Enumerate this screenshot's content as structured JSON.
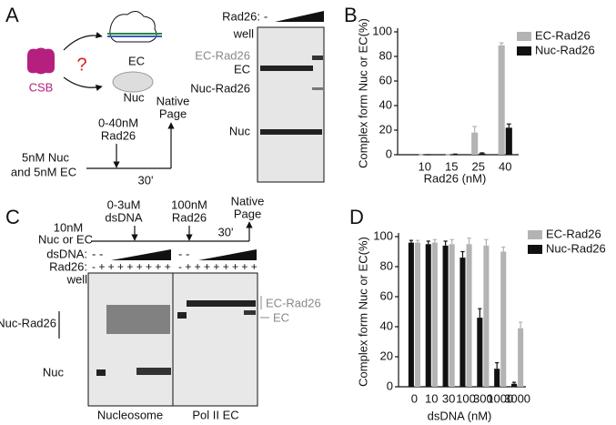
{
  "chart_data": [
    {
      "type": "bar",
      "categories": [
        "10",
        "15",
        "25",
        "40"
      ],
      "series": [
        {
          "name": "EC-Rad26",
          "color": "#b3b3b3",
          "values": [
            0,
            0,
            18,
            89
          ],
          "errors": [
            0,
            0,
            5,
            2
          ]
        },
        {
          "name": "Nuc-Rad26",
          "color": "#111111",
          "values": [
            0,
            0,
            1,
            22
          ],
          "errors": [
            0,
            0.5,
            0.5,
            3
          ]
        }
      ],
      "ylim": [
        0,
        100
      ],
      "yticks": [
        0,
        20,
        40,
        60,
        80,
        100
      ],
      "ylabel": "Complex form Nuc or EC(%)",
      "xlabel": "Rad26 (nM)",
      "legend": "upper right"
    },
    {
      "type": "bar",
      "categories": [
        "0",
        "10",
        "30",
        "100",
        "300",
        "1000",
        "3000"
      ],
      "series": [
        {
          "name": "Nuc-Rad26",
          "color": "#111111",
          "values": [
            96,
            95,
            94,
            86,
            46,
            12,
            2
          ],
          "errors": [
            1.5,
            2,
            3,
            4,
            6,
            4,
            1
          ]
        },
        {
          "name": "EC-Rad26",
          "color": "#b3b3b3",
          "values": [
            96,
            96,
            95,
            95,
            94,
            90,
            39
          ],
          "errors": [
            1.5,
            2,
            3,
            4,
            4,
            3,
            4
          ]
        }
      ],
      "ylim": [
        0,
        100
      ],
      "yticks": [
        0,
        20,
        40,
        60,
        80,
        100
      ],
      "ylabel": "Complex form Nuc or EC(%)",
      "xlabel": "dsDNA (nM)",
      "legend": "upper right"
    }
  ],
  "figure": {
    "panel_labels": [
      "A",
      "B",
      "C",
      "D"
    ],
    "a": {
      "csb": "CSB",
      "question": "?",
      "ec": "EC",
      "nuc": "Nuc",
      "dose": [
        "0-40nM",
        "Rad26"
      ],
      "native_page": [
        "Native",
        "Page"
      ],
      "substrate": [
        "5nM Nuc",
        "and 5nM EC"
      ],
      "time": "30'",
      "gel_header": "Rad26:",
      "minus": "-",
      "gel_labels": [
        "well",
        "EC-Rad26",
        "EC",
        "Nuc-Rad26",
        "Nuc"
      ]
    },
    "c": {
      "dose1": [
        "0-3uM",
        "dsDNA"
      ],
      "dose2": [
        "100nM",
        "Rad26"
      ],
      "native_page": [
        "Native",
        "Page"
      ],
      "substrate": [
        "10nM",
        "Nuc or EC"
      ],
      "time": "30'",
      "row_labels": [
        "dsDNA:",
        "Rad26:",
        "well"
      ],
      "dsdna_signs": [
        "- -",
        "- -"
      ],
      "rad26_signs": [
        "- + + + + + + + +",
        "- + + + + + + + +"
      ],
      "left_labels": [
        "Nuc-Rad26",
        "Nuc"
      ],
      "right_labels": [
        "EC-Rad26",
        "EC"
      ],
      "gel_names": [
        "Nucleosome",
        "Pol II EC"
      ]
    }
  }
}
